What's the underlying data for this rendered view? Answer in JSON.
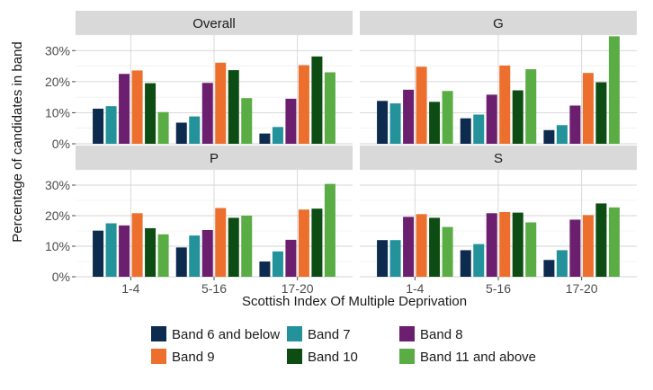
{
  "chart_data": {
    "type": "bar",
    "xlabel": "Scottish Index Of Multiple Deprivation",
    "ylabel": "Percentage of candidates in band",
    "categories": [
      "1-4",
      "5-16",
      "17-20"
    ],
    "ylim": [
      0,
      0.35
    ],
    "yticks": [
      0,
      0.1,
      0.2,
      0.3
    ],
    "ytick_labels": [
      "0%",
      "10%",
      "20%",
      "30%"
    ],
    "grid": true,
    "legend_position": "bottom",
    "series_names": [
      "Band 6 and below",
      "Band 7",
      "Band 8",
      "Band 9",
      "Band 10",
      "Band 11 and above"
    ],
    "colors": [
      "#0d2b4e",
      "#24929a",
      "#6b1f6e",
      "#ed6f2e",
      "#0d4d14",
      "#5aac44"
    ],
    "panels": [
      {
        "title": "Overall",
        "values": [
          [
            0.113,
            0.121,
            0.225,
            0.236,
            0.195,
            0.102
          ],
          [
            0.068,
            0.088,
            0.196,
            0.261,
            0.237,
            0.147
          ],
          [
            0.033,
            0.054,
            0.145,
            0.253,
            0.281,
            0.23
          ]
        ]
      },
      {
        "title": "G",
        "values": [
          [
            0.138,
            0.13,
            0.174,
            0.248,
            0.135,
            0.17
          ],
          [
            0.082,
            0.094,
            0.158,
            0.252,
            0.172,
            0.24
          ],
          [
            0.044,
            0.06,
            0.123,
            0.228,
            0.198,
            0.346
          ]
        ]
      },
      {
        "title": "P",
        "values": [
          [
            0.151,
            0.175,
            0.168,
            0.208,
            0.159,
            0.139
          ],
          [
            0.096,
            0.135,
            0.153,
            0.225,
            0.193,
            0.2
          ],
          [
            0.05,
            0.083,
            0.121,
            0.22,
            0.223,
            0.304
          ]
        ]
      },
      {
        "title": "S",
        "values": [
          [
            0.12,
            0.12,
            0.196,
            0.205,
            0.193,
            0.163
          ],
          [
            0.087,
            0.107,
            0.208,
            0.212,
            0.21,
            0.178
          ],
          [
            0.055,
            0.087,
            0.187,
            0.202,
            0.24,
            0.227
          ]
        ]
      }
    ]
  }
}
